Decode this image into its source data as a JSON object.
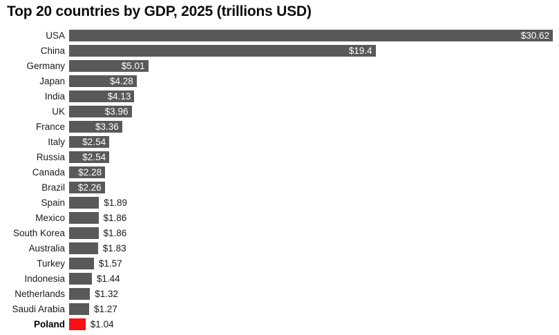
{
  "title": "Top 20 countries by GDP, 2025 (trillions USD)",
  "colors": {
    "background": "#ffffff",
    "bar": "#595959",
    "highlight": "#fa0f15",
    "label_inside": "#ffffff",
    "label_outside": "#1a1a1a",
    "title_text": "#0d0d0d"
  },
  "chart_data": {
    "type": "bar",
    "orientation": "horizontal",
    "title": "Top 20 countries by GDP, 2025 (trillions USD)",
    "xlabel": "",
    "ylabel": "",
    "xlim": [
      0,
      30.62
    ],
    "grid": false,
    "legend": false,
    "categories": [
      "USA",
      "China",
      "Germany",
      "Japan",
      "India",
      "UK",
      "France",
      "Italy",
      "Russia",
      "Canada",
      "Brazil",
      "Spain",
      "Mexico",
      "South Korea",
      "Australia",
      "Turkey",
      "Indonesia",
      "Netherlands",
      "Saudi Arabia",
      "Poland"
    ],
    "values": [
      30.62,
      19.4,
      5.01,
      4.28,
      4.13,
      3.96,
      3.36,
      2.54,
      2.54,
      2.28,
      2.26,
      1.89,
      1.86,
      1.86,
      1.83,
      1.57,
      1.44,
      1.32,
      1.27,
      1.04
    ],
    "value_labels": [
      "$30.62",
      "$19.4",
      "$5.01",
      "$4.28",
      "$4.13",
      "$3.96",
      "$3.36",
      "$2.54",
      "$2.54",
      "$2.28",
      "$2.26",
      "$1.89",
      "$1.86",
      "$1.86",
      "$1.83",
      "$1.57",
      "$1.44",
      "$1.32",
      "$1.27",
      "$1.04"
    ],
    "highlight_category": "Poland",
    "annotations": []
  }
}
